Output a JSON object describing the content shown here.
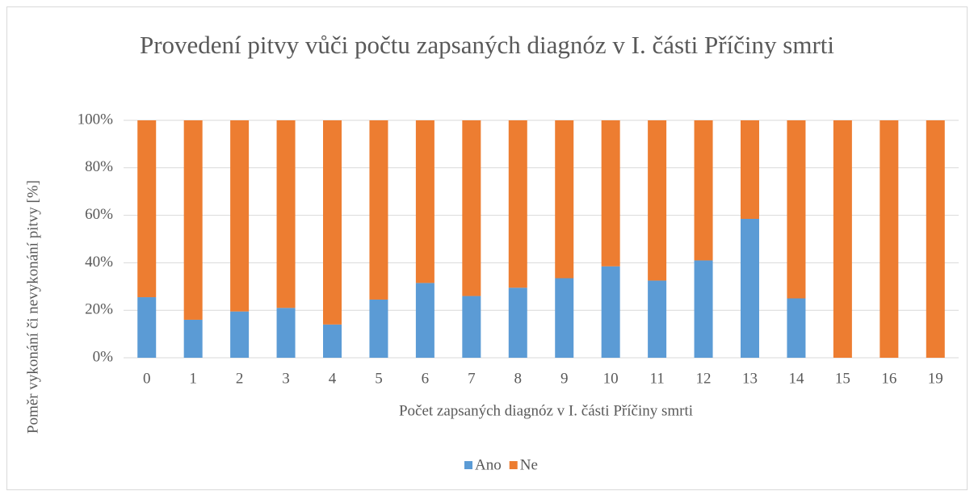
{
  "chart_data": {
    "type": "stacked_bar",
    "title": "Provedení pitvy vůči počtu zapsaných diagnóz v I. části Příčiny smrti",
    "x_label": "Počet zapsaných diagnóz v I. části Příčiny smrti",
    "y_label": "Poměr vykonání či nevykonání pitvy [%]",
    "categories": [
      "0",
      "1",
      "2",
      "3",
      "4",
      "5",
      "6",
      "7",
      "8",
      "9",
      "10",
      "11",
      "12",
      "13",
      "14",
      "15",
      "16",
      "19"
    ],
    "series": [
      {
        "name": "Ano",
        "color": "#5b9bd5",
        "values": [
          25.5,
          16,
          19.5,
          21,
          14,
          24.5,
          31.5,
          26,
          29.5,
          33.5,
          38.5,
          32.5,
          41,
          58.5,
          25,
          0,
          0,
          0
        ]
      },
      {
        "name": "Ne",
        "color": "#ed7d31",
        "values": [
          74.5,
          84,
          80.5,
          79,
          86,
          75.5,
          68.5,
          74,
          70.5,
          66.5,
          61.5,
          67.5,
          59,
          41.5,
          75,
          100,
          100,
          100
        ]
      }
    ],
    "ylim": [
      0,
      100
    ],
    "yticks": [
      {
        "value": 0,
        "label": "0%"
      },
      {
        "value": 20,
        "label": "20%"
      },
      {
        "value": 40,
        "label": "40%"
      },
      {
        "value": 60,
        "label": "60%"
      },
      {
        "value": 80,
        "label": "80%"
      },
      {
        "value": 100,
        "label": "100%"
      }
    ],
    "grid": true,
    "legend": "bottom"
  }
}
